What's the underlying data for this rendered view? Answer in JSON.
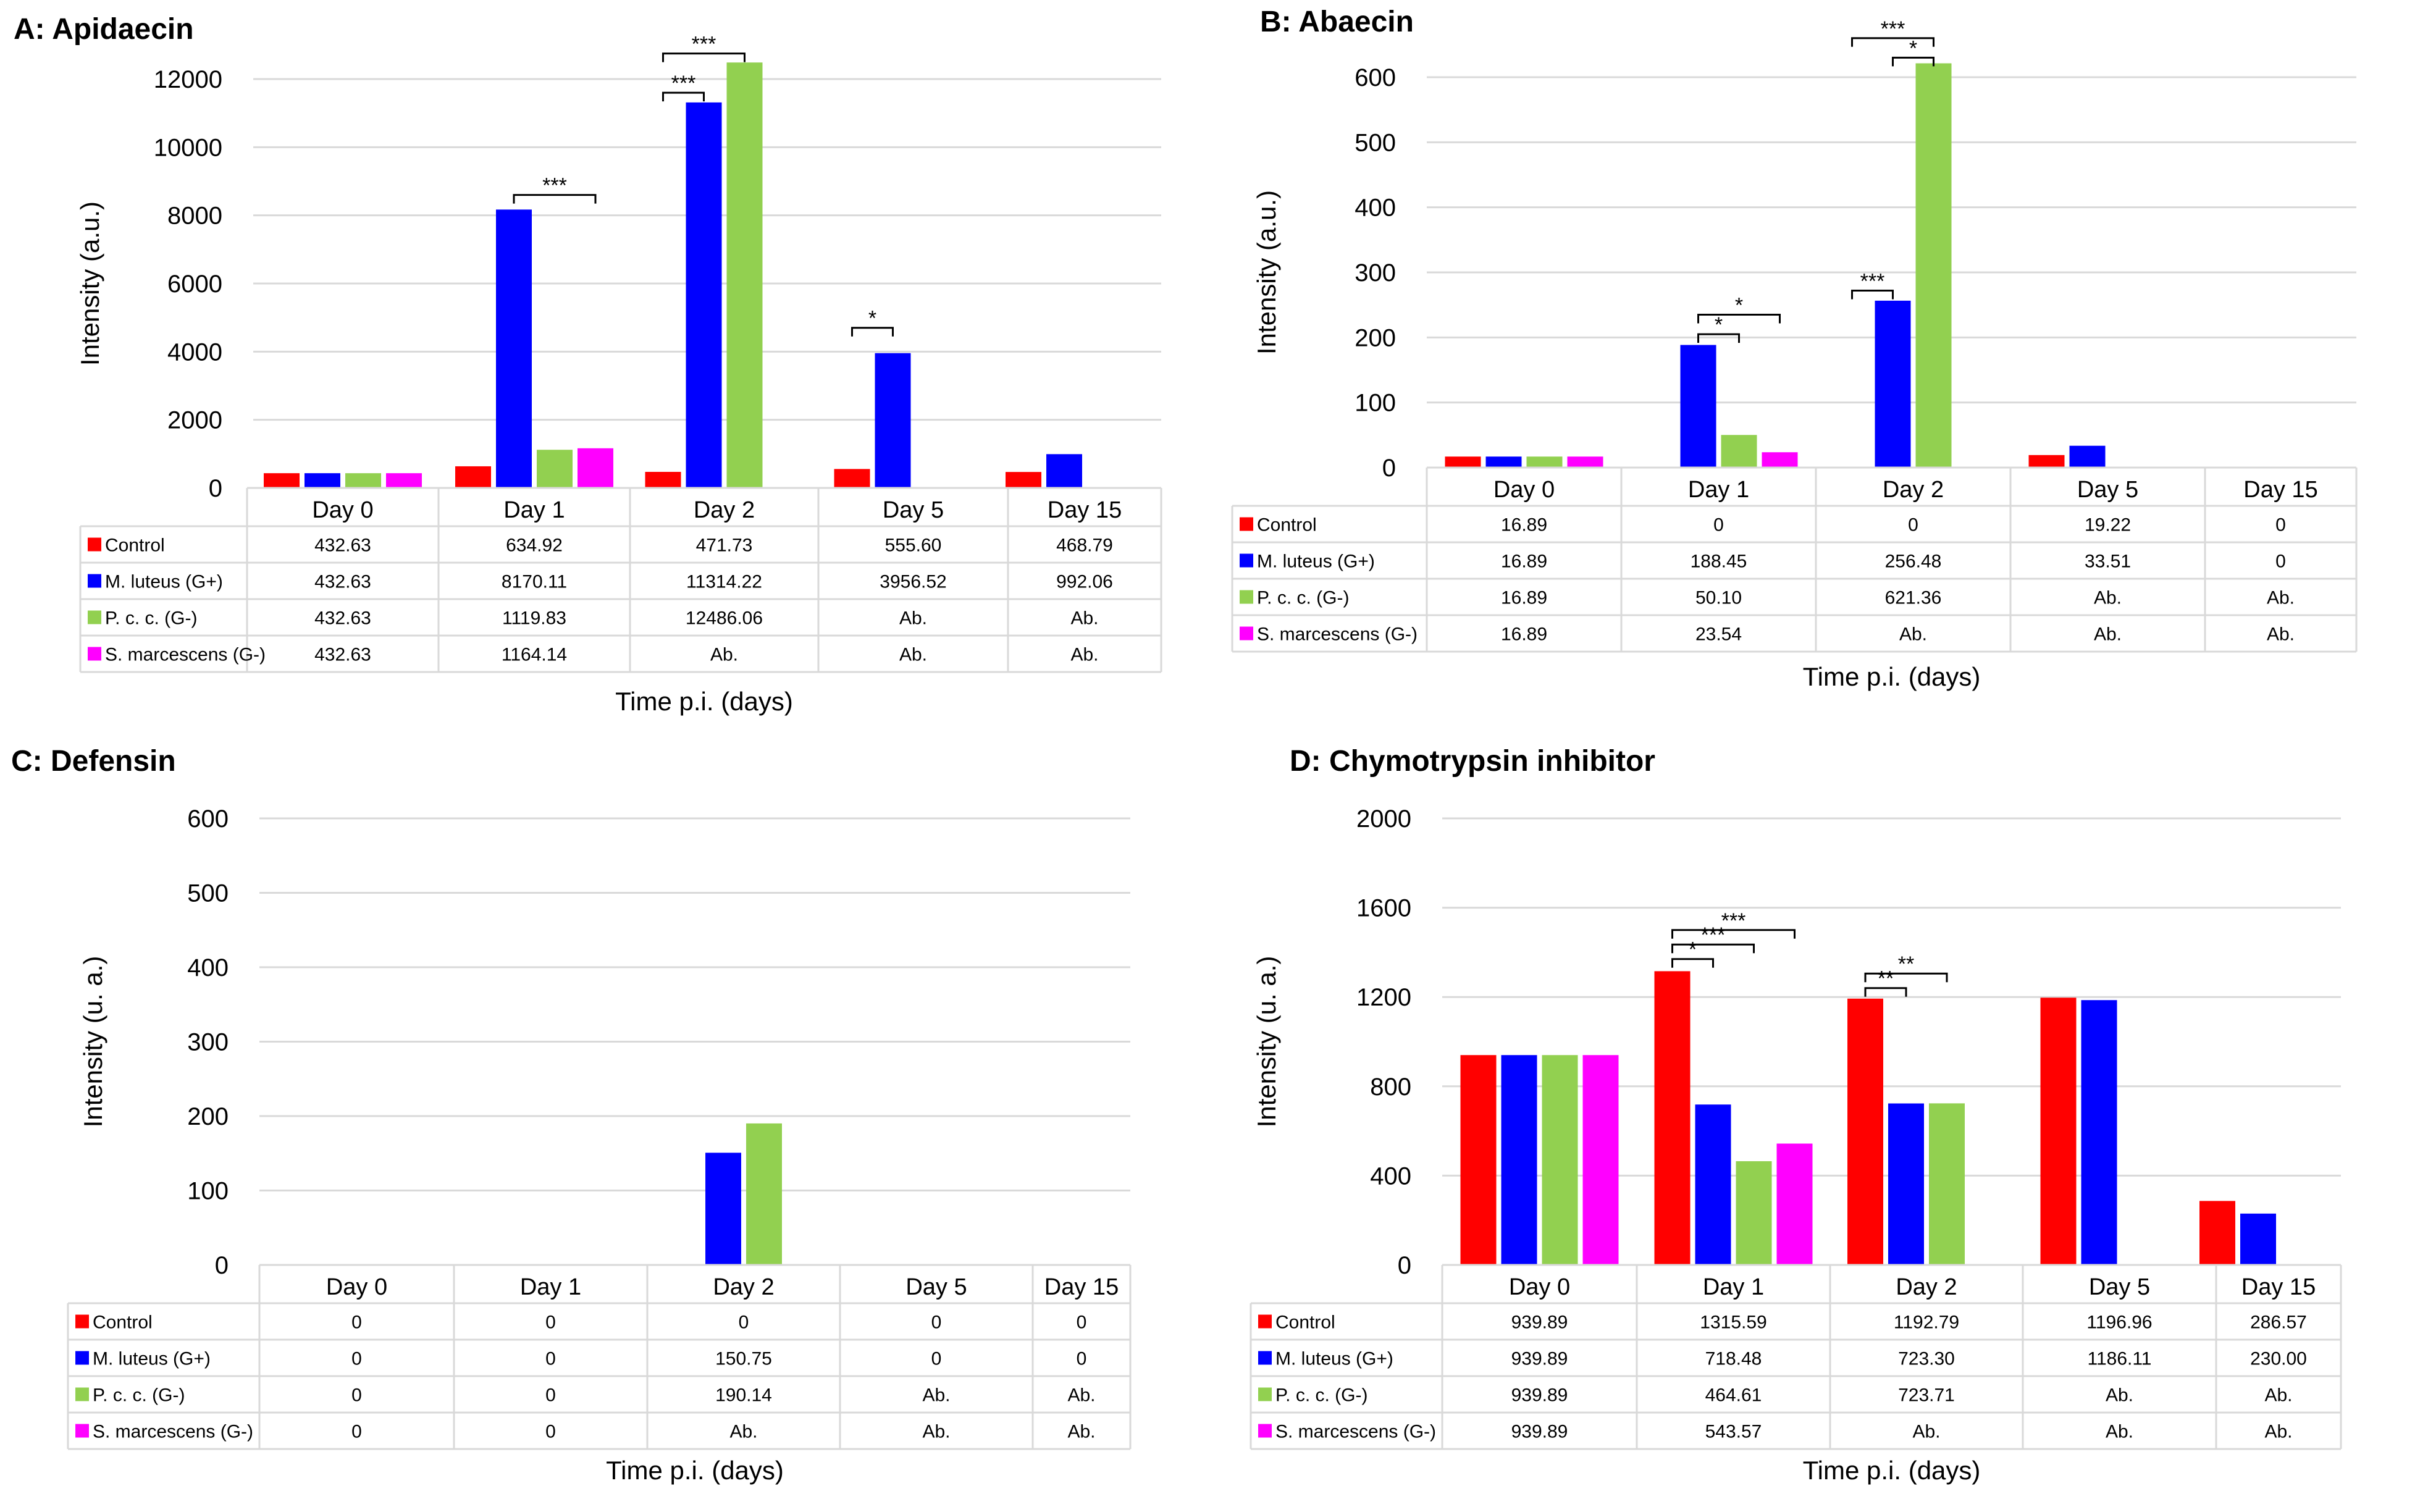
{
  "colors": {
    "control": "#ff0000",
    "mluteus": "#0000ff",
    "pcc": "#92d050",
    "smarcescens": "#ff00ff",
    "grid": "#d9d9d9"
  },
  "chart_data": [
    {
      "type": "bar",
      "title": "A: Apidaecin",
      "ylabel": "Intensity (a.u.)",
      "xlabel": "Time p.i. (days)",
      "ylim": [
        0,
        12000
      ],
      "yticks": [
        0,
        2000,
        4000,
        6000,
        8000,
        10000,
        12000
      ],
      "categories": [
        "Day 0",
        "Day 1",
        "Day 2",
        "Day 5",
        "Day 15"
      ],
      "series": [
        {
          "name": "Control",
          "color": "#ff0000",
          "values": [
            432.63,
            634.92,
            471.73,
            555.6,
            468.79
          ],
          "labels": [
            "432.63",
            "634.92",
            "471.73",
            "555.60",
            "468.79"
          ]
        },
        {
          "name": "M. luteus (G+)",
          "color": "#0000ff",
          "values": [
            432.63,
            8170.11,
            11314.22,
            3956.52,
            992.06
          ],
          "labels": [
            "432.63",
            "8170.11",
            "11314.22",
            "3956.52",
            "992.06"
          ]
        },
        {
          "name": "P. c. c. (G-)",
          "color": "#92d050",
          "values": [
            432.63,
            1119.83,
            12486.06,
            null,
            null
          ],
          "labels": [
            "432.63",
            "1119.83",
            "12486.06",
            "Ab.",
            "Ab."
          ]
        },
        {
          "name": "S. marcescens (G-)",
          "color": "#ff00ff",
          "values": [
            432.63,
            1164.14,
            null,
            null,
            null
          ],
          "labels": [
            "432.63",
            "1164.14",
            "Ab.",
            "Ab.",
            "Ab."
          ]
        }
      ],
      "annotations": [
        {
          "cat": 1,
          "from": 1,
          "to": 3,
          "level": 8600,
          "text": "***"
        },
        {
          "cat": 2,
          "from": 0,
          "to": 1,
          "level": 11600,
          "text": "***"
        },
        {
          "cat": 2,
          "from": 0,
          "to": 2,
          "level": 12750,
          "text": "***"
        },
        {
          "cat": 3,
          "from": 0,
          "to": 1,
          "level": 4700,
          "text": "*"
        }
      ]
    },
    {
      "type": "bar",
      "title": "B: Abaecin",
      "ylabel": "Intensity (a.u.)",
      "xlabel": "Time p.i. (days)",
      "ylim": [
        0,
        600
      ],
      "yticks": [
        0,
        100,
        200,
        300,
        400,
        500,
        600
      ],
      "categories": [
        "Day 0",
        "Day 1",
        "Day 2",
        "Day 5",
        "Day 15"
      ],
      "series": [
        {
          "name": "Control",
          "color": "#ff0000",
          "values": [
            16.89,
            0,
            0,
            19.22,
            0
          ],
          "labels": [
            "16.89",
            "0",
            "0",
            "19.22",
            "0"
          ]
        },
        {
          "name": "M. luteus (G+)",
          "color": "#0000ff",
          "values": [
            16.89,
            188.45,
            256.48,
            33.51,
            0
          ],
          "labels": [
            "16.89",
            "188.45",
            "256.48",
            "33.51",
            "0"
          ]
        },
        {
          "name": "P. c. c. (G-)",
          "color": "#92d050",
          "values": [
            16.89,
            50.1,
            621.36,
            null,
            null
          ],
          "labels": [
            "16.89",
            "50.10",
            "621.36",
            "Ab.",
            "Ab."
          ]
        },
        {
          "name": "S. marcescens (G-)",
          "color": "#ff00ff",
          "values": [
            16.89,
            23.54,
            null,
            null,
            null
          ],
          "labels": [
            "16.89",
            "23.54",
            "Ab.",
            "Ab.",
            "Ab."
          ]
        }
      ],
      "annotations": [
        {
          "cat": 1,
          "from": 1,
          "to": 2,
          "level": 205,
          "text": "*"
        },
        {
          "cat": 1,
          "from": 1,
          "to": 3,
          "level": 235,
          "text": "*"
        },
        {
          "cat": 2,
          "from": 0,
          "to": 1,
          "level": 272,
          "text": "***"
        },
        {
          "cat": 2,
          "from": 1,
          "to": 2,
          "level": 630,
          "text": "*"
        },
        {
          "cat": 2,
          "from": 0,
          "to": 2,
          "level": 660,
          "text": "***"
        }
      ]
    },
    {
      "type": "bar",
      "title": "C: Defensin",
      "ylabel": "Intensity (u. a.)",
      "xlabel": "Time p.i. (days)",
      "ylim": [
        0,
        600
      ],
      "yticks": [
        0,
        100,
        200,
        300,
        400,
        500,
        600
      ],
      "categories": [
        "Day 0",
        "Day 1",
        "Day 2",
        "Day 5",
        "Day 15"
      ],
      "series": [
        {
          "name": "Control",
          "color": "#ff0000",
          "values": [
            0,
            0,
            0,
            0,
            0
          ],
          "labels": [
            "0",
            "0",
            "0",
            "0",
            "0"
          ]
        },
        {
          "name": "M. luteus (G+)",
          "color": "#0000ff",
          "values": [
            0,
            0,
            150.75,
            0,
            0
          ],
          "labels": [
            "0",
            "0",
            "150.75",
            "0",
            "0"
          ]
        },
        {
          "name": "P. c. c. (G-)",
          "color": "#92d050",
          "values": [
            0,
            0,
            190.14,
            null,
            null
          ],
          "labels": [
            "0",
            "0",
            "190.14",
            "Ab.",
            "Ab."
          ]
        },
        {
          "name": "S. marcescens (G-)",
          "color": "#ff00ff",
          "values": [
            0,
            0,
            null,
            null,
            null
          ],
          "labels": [
            "0",
            "0",
            "Ab.",
            "Ab.",
            "Ab."
          ]
        }
      ],
      "annotations": []
    },
    {
      "type": "bar",
      "title": "D: Chymotrypsin inhibitor",
      "ylabel": "Intensity (u. a.)",
      "xlabel": "Time p.i. (days)",
      "ylim": [
        0,
        2000
      ],
      "yticks": [
        0,
        400,
        800,
        1200,
        1600,
        2000
      ],
      "categories": [
        "Day 0",
        "Day 1",
        "Day 2",
        "Day 5",
        "Day 15"
      ],
      "series": [
        {
          "name": "Control",
          "color": "#ff0000",
          "values": [
            939.89,
            1315.59,
            1192.79,
            1196.96,
            286.57
          ],
          "labels": [
            "939.89",
            "1315.59",
            "1192.79",
            "1196.96",
            "286.57"
          ]
        },
        {
          "name": "M. luteus (G+)",
          "color": "#0000ff",
          "values": [
            939.89,
            718.48,
            723.3,
            1186.11,
            230.0
          ],
          "labels": [
            "939.89",
            "718.48",
            "723.30",
            "1186.11",
            "230.00"
          ]
        },
        {
          "name": "P. c. c. (G-)",
          "color": "#92d050",
          "values": [
            939.89,
            464.61,
            723.71,
            null,
            null
          ],
          "labels": [
            "939.89",
            "464.61",
            "723.71",
            "Ab.",
            "Ab."
          ]
        },
        {
          "name": "S. marcescens (G-)",
          "color": "#ff00ff",
          "values": [
            939.89,
            543.57,
            null,
            null,
            null
          ],
          "labels": [
            "939.89",
            "543.57",
            "Ab.",
            "Ab.",
            "Ab."
          ]
        }
      ],
      "annotations": [
        {
          "cat": 1,
          "from": 0,
          "to": 1,
          "level": 1370,
          "text": "*"
        },
        {
          "cat": 1,
          "from": 0,
          "to": 2,
          "level": 1435,
          "text": "***"
        },
        {
          "cat": 1,
          "from": 0,
          "to": 3,
          "level": 1500,
          "text": "***"
        },
        {
          "cat": 2,
          "from": 0,
          "to": 1,
          "level": 1240,
          "text": "**"
        },
        {
          "cat": 2,
          "from": 0,
          "to": 2,
          "level": 1305,
          "text": "**"
        }
      ]
    }
  ]
}
